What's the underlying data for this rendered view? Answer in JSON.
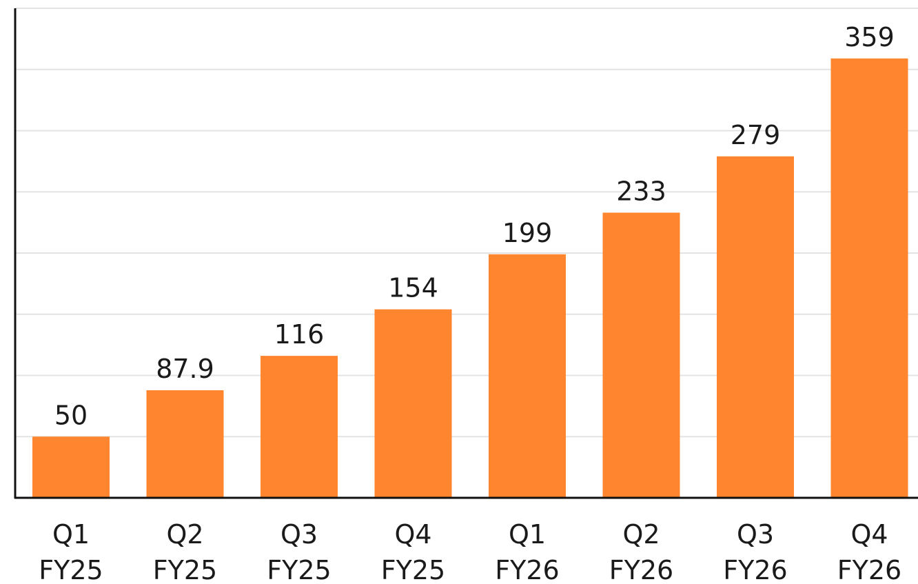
{
  "chart_data": {
    "type": "bar",
    "categories": [
      [
        "Q1",
        "FY25"
      ],
      [
        "Q2",
        "FY25"
      ],
      [
        "Q3",
        "FY25"
      ],
      [
        "Q4",
        "FY25"
      ],
      [
        "Q1",
        "FY26"
      ],
      [
        "Q2",
        "FY26"
      ],
      [
        "Q3",
        "FY26"
      ],
      [
        "Q4",
        "FY26"
      ]
    ],
    "values": [
      50,
      87.9,
      116,
      154,
      199,
      233,
      279,
      359
    ],
    "value_labels": [
      "50",
      "87.9",
      "116",
      "154",
      "199",
      "233",
      "279",
      "359"
    ],
    "ylim": [
      0,
      400
    ],
    "grid_step": 50,
    "grid": true,
    "bar_color": "#ff862e",
    "title": "",
    "xlabel": "",
    "ylabel": ""
  }
}
